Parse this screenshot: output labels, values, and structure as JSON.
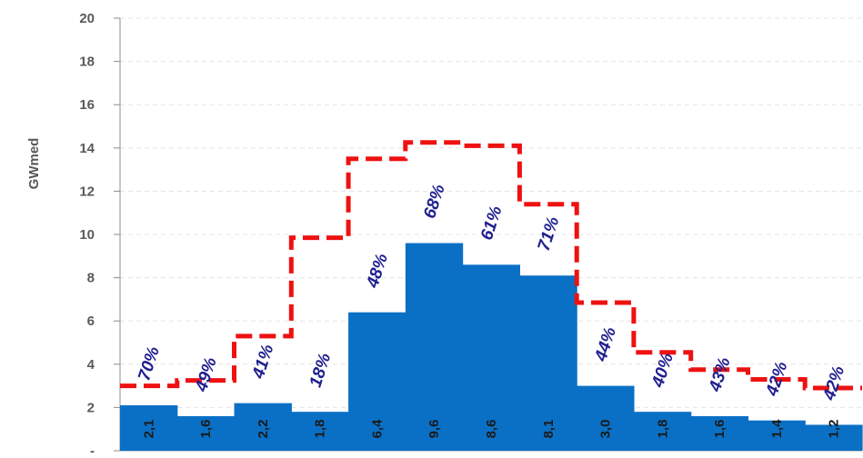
{
  "chart_data": {
    "type": "bar",
    "ylabel": "GWmed",
    "ylim": [
      0,
      20
    ],
    "y_ticks": [
      "-",
      "2",
      "4",
      "6",
      "8",
      "10",
      "12",
      "14",
      "16",
      "18",
      "20"
    ],
    "grid": true,
    "colors": {
      "bar": "#0a70c6",
      "line": "#ee1111",
      "percent": "#1f1f8f",
      "value": "#1a1a1a"
    },
    "series": [
      {
        "kind": "bar",
        "values": [
          2.1,
          1.6,
          2.2,
          1.8,
          6.4,
          9.6,
          8.6,
          8.1,
          3.0,
          1.8,
          1.6,
          1.4,
          1.2
        ],
        "labels": [
          "2,1",
          "1,6",
          "2,2",
          "1,8",
          "6,4",
          "9,6",
          "8,6",
          "8,1",
          "3,0",
          "1,8",
          "1,6",
          "1,4",
          "1,2"
        ]
      },
      {
        "kind": "step-line",
        "style": "dashed",
        "values": [
          3.0,
          3.25,
          5.3,
          9.85,
          13.5,
          14.25,
          14.1,
          11.4,
          6.85,
          4.55,
          3.75,
          3.3,
          2.9
        ]
      }
    ],
    "percent_labels": [
      "70%",
      "49%",
      "41%",
      "18%",
      "48%",
      "68%",
      "61%",
      "71%",
      "44%",
      "40%",
      "43%",
      "42%",
      "42%"
    ]
  }
}
